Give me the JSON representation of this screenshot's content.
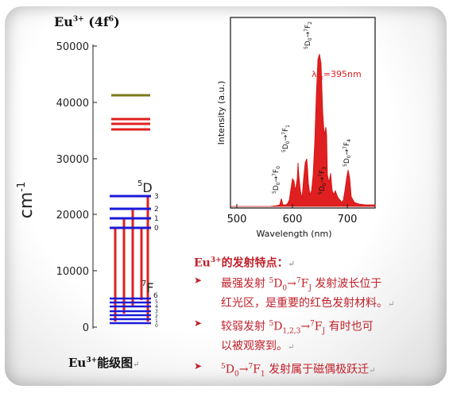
{
  "diagram": {
    "title_top": {
      "ion": "Eu",
      "charge": "3+",
      "config_open": " (4f",
      "config_sup": "6",
      "config_close": ")"
    },
    "y_axis": {
      "label": "cm",
      "label_exp": "-1",
      "ticks": [
        "50000",
        "40000",
        "30000",
        "20000",
        "10000",
        "0"
      ]
    },
    "levels": {
      "D_label": "5",
      "D_letter": "D",
      "D_sublevels": [
        "3",
        "2",
        "1",
        "0"
      ],
      "F_label": "7",
      "F_letter": "F",
      "F_sublevels": [
        "6",
        "5",
        "4",
        "3",
        "2",
        "1",
        "0"
      ]
    },
    "caption_ion": "Eu",
    "caption_charge": "3+",
    "caption_text": "能级图",
    "colors": {
      "red": "#e02020",
      "blue": "#1a1ad8",
      "olive": "#7a7a1c"
    }
  },
  "spectrum": {
    "ylabel": "Intensity (a.u.)",
    "xlabel": "Wavelength (nm)",
    "x_ticks": [
      "500",
      "600",
      "700"
    ],
    "excitation": {
      "lambda": "λ",
      "sub": "ex",
      "value": "=395nm"
    },
    "transitions": [
      {
        "up": "5",
        "D": "D",
        "Dsub": "0",
        "arrow": "→",
        "low": "7",
        "F": "F",
        "Fsub": "0"
      },
      {
        "up": "5",
        "D": "D",
        "Dsub": "0",
        "arrow": "→",
        "low": "7",
        "F": "F",
        "Fsub": "1"
      },
      {
        "up": "5",
        "D": "D",
        "Dsub": "0",
        "arrow": "→",
        "low": "7",
        "F": "F",
        "Fsub": "2"
      },
      {
        "up": "5",
        "D": "D",
        "Dsub": "0",
        "arrow": "→",
        "low": "7",
        "F": "F",
        "Fsub": "3"
      },
      {
        "up": "5",
        "D": "D",
        "Dsub": "0",
        "arrow": "→",
        "low": "7",
        "F": "F",
        "Fsub": "4"
      }
    ]
  },
  "text": {
    "heading": {
      "ion": "Eu",
      "charge": "3+",
      "rest": "的发射特点："
    },
    "bullet_marker": "➤",
    "return_mark": "↵",
    "b1": {
      "a": "最强发射 ",
      "sup1": "5",
      "b": "D",
      "sub1": "0",
      "c": "→",
      "sup2": "7",
      "d": "F",
      "sub2": "J",
      "e": " 发射波长位于",
      "f": "红光区，是重要的红色发射材料。"
    },
    "b2": {
      "a": "较弱发射 ",
      "sup1": "5",
      "b": "D",
      "sub1": "1,2,3",
      "c": "→",
      "sup2": "7",
      "d": "F",
      "sub2": "J",
      "e": " 有时也可",
      "f": "以被观察到。"
    },
    "b3": {
      "sup1": "5",
      "b": "D",
      "sub1": "0",
      "c": "→",
      "sup2": "7",
      "d": "F",
      "sub2": "1",
      "e": " 发射属于磁偶极跃迁"
    }
  }
}
